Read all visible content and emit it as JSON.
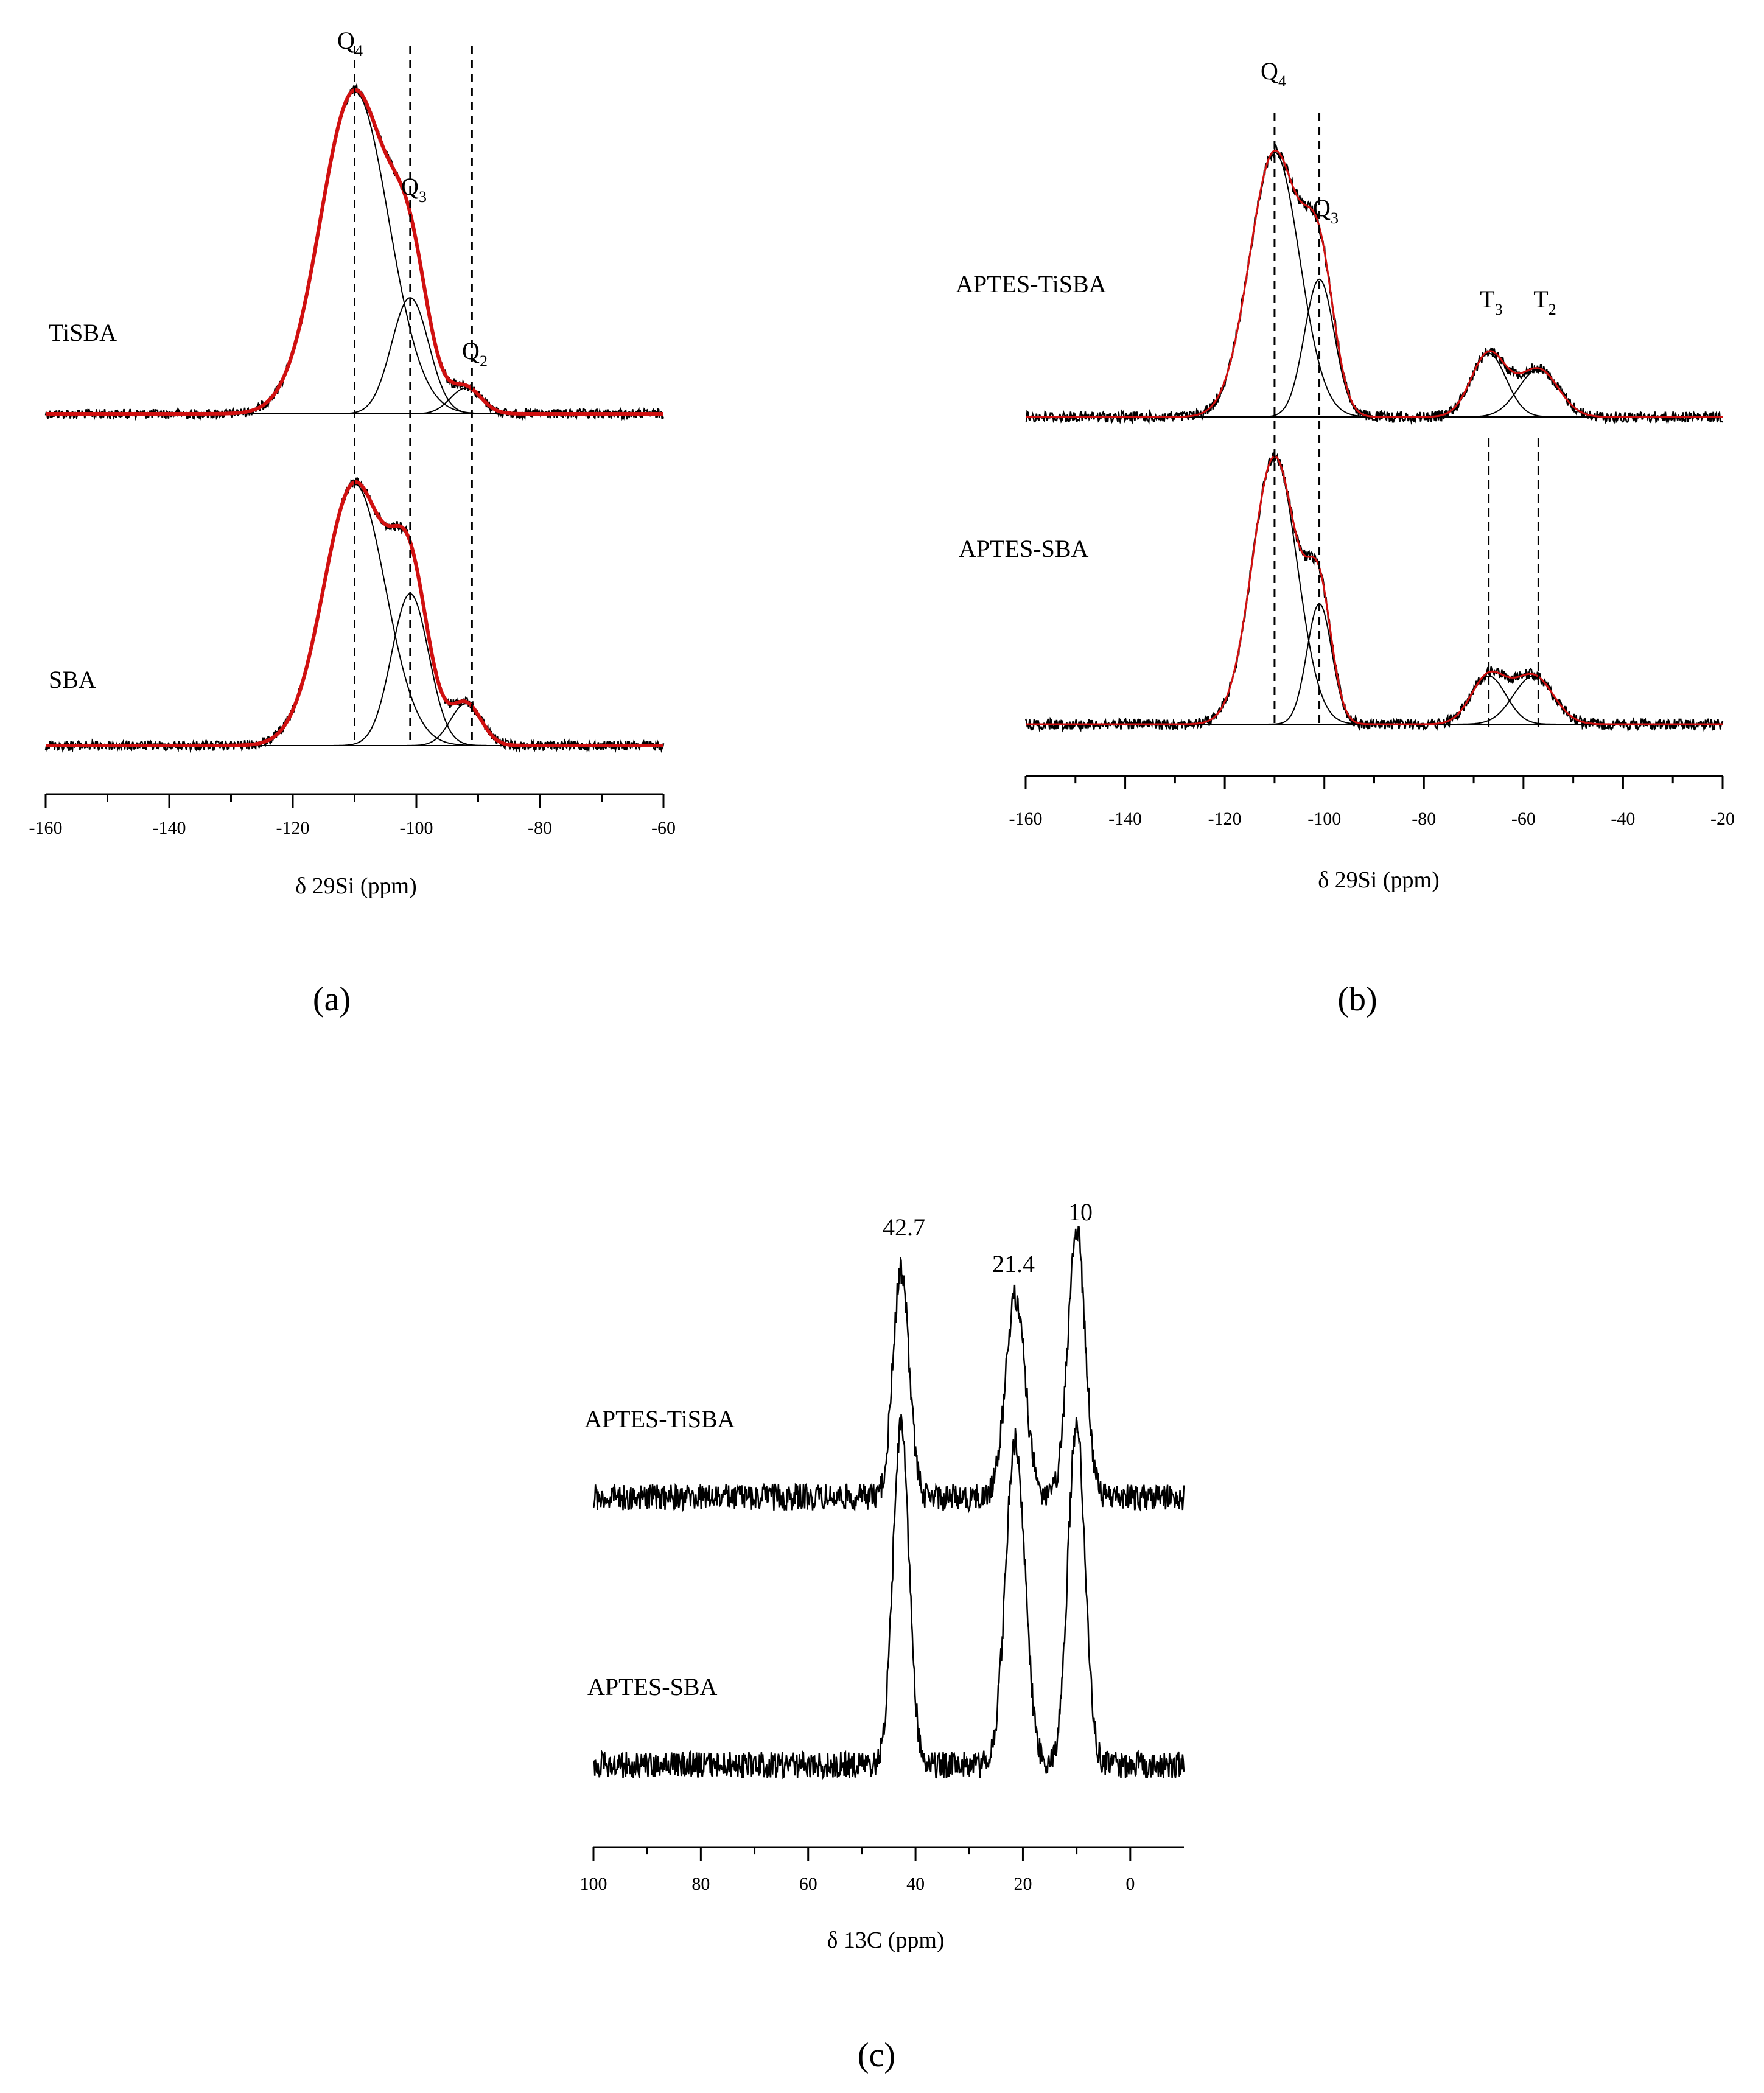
{
  "chart_data": [
    {
      "panel": "a",
      "caption": "(a)",
      "type": "line",
      "xlabel": "δ 29Si (ppm)",
      "xlim": [
        -160,
        -60
      ],
      "xticks": [
        -160,
        -140,
        -120,
        -100,
        -80,
        -60
      ],
      "traces": [
        {
          "name": "TiSBA",
          "peaks": [
            {
              "center": -110,
              "height": 1.0,
              "width": 5.5
            },
            {
              "center": -101,
              "height": 0.36,
              "width": 3.0
            },
            {
              "center": -92,
              "height": 0.08,
              "width": 2.5
            }
          ]
        },
        {
          "name": "SBA",
          "peaks": [
            {
              "center": -110,
              "height": 1.0,
              "width": 5.0
            },
            {
              "center": -101,
              "height": 0.58,
              "width": 3.0
            },
            {
              "center": -92,
              "height": 0.16,
              "width": 2.5
            }
          ]
        }
      ],
      "peak_labels": [
        {
          "label": "Q",
          "sub": "4",
          "ppm": -110
        },
        {
          "label": "Q",
          "sub": "3",
          "ppm": -101
        },
        {
          "label": "Q",
          "sub": "2",
          "ppm": -91
        }
      ]
    },
    {
      "panel": "b",
      "caption": "(b)",
      "type": "line",
      "xlabel": "δ 29Si (ppm)",
      "xlim": [
        -160,
        -20
      ],
      "xticks": [
        -160,
        -140,
        -120,
        -100,
        -80,
        -60,
        -40,
        -20
      ],
      "traces": [
        {
          "name": "APTES-TiSBA",
          "peaks": [
            {
              "center": -110,
              "height": 1.0,
              "width": 5.0
            },
            {
              "center": -101,
              "height": 0.52,
              "width": 3.0
            },
            {
              "center": -67,
              "height": 0.24,
              "width": 3.5
            },
            {
              "center": -57,
              "height": 0.18,
              "width": 4.0
            }
          ]
        },
        {
          "name": "APTES-SBA",
          "peaks": [
            {
              "center": -110,
              "height": 1.0,
              "width": 4.5
            },
            {
              "center": -101,
              "height": 0.45,
              "width": 2.5
            },
            {
              "center": -67,
              "height": 0.18,
              "width": 3.5
            },
            {
              "center": -58,
              "height": 0.18,
              "width": 4.0
            }
          ]
        }
      ],
      "peak_labels": [
        {
          "label": "Q",
          "sub": "4",
          "ppm": -110
        },
        {
          "label": "Q",
          "sub": "3",
          "ppm": -101
        },
        {
          "label": "T",
          "sub": "3",
          "ppm": -67
        },
        {
          "label": "T",
          "sub": "2",
          "ppm": -57
        }
      ]
    },
    {
      "panel": "c",
      "caption": "(c)",
      "type": "line",
      "xlabel": "δ 13C (ppm)",
      "xlim": [
        100,
        -10
      ],
      "xticks": [
        100,
        80,
        60,
        40,
        20,
        0
      ],
      "traces": [
        {
          "name": "APTES-TiSBA",
          "peaks": [
            {
              "center": 42.7,
              "height": 0.85,
              "width": 1.5
            },
            {
              "center": 21.4,
              "height": 0.75,
              "width": 1.8
            },
            {
              "center": 10,
              "height": 1.0,
              "width": 1.6
            }
          ]
        },
        {
          "name": "APTES-SBA",
          "peaks": [
            {
              "center": 42.7,
              "height": 1.0,
              "width": 1.5
            },
            {
              "center": 21.4,
              "height": 0.95,
              "width": 1.8
            },
            {
              "center": 10,
              "height": 1.0,
              "width": 1.6
            }
          ]
        }
      ],
      "peak_labels": [
        {
          "label": "42.7",
          "ppm": 42.7
        },
        {
          "label": "21.4",
          "ppm": 21.4
        },
        {
          "label": "10",
          "ppm": 10
        }
      ]
    }
  ]
}
